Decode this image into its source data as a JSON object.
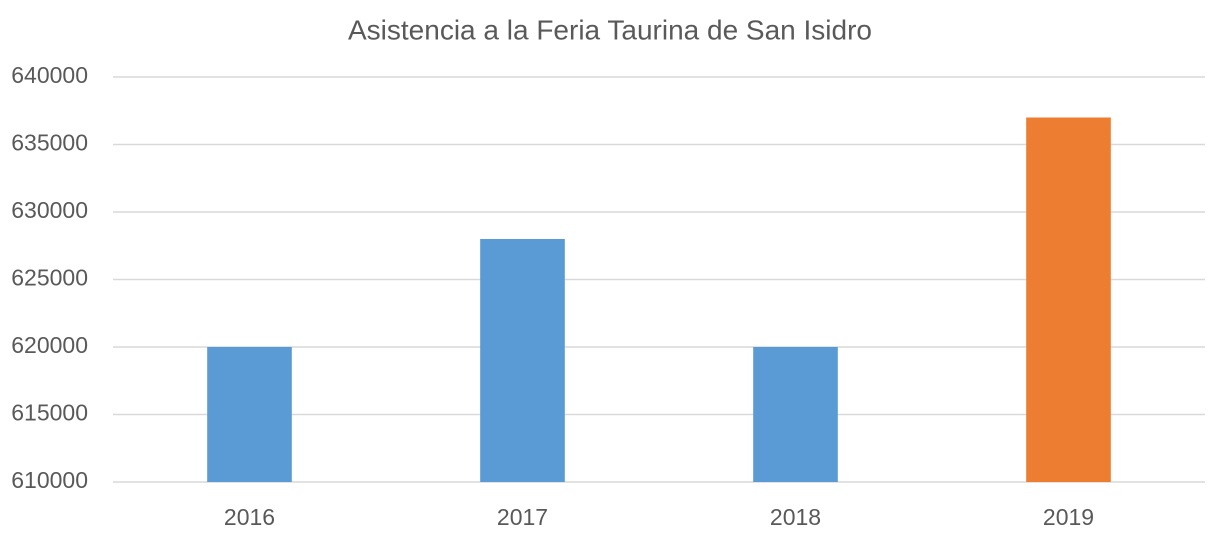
{
  "chart_data": {
    "type": "bar",
    "title": "Asistencia a la Feria Taurina de San Isidro",
    "categories": [
      "2016",
      "2017",
      "2018",
      "2019"
    ],
    "values": [
      620000,
      628000,
      620000,
      637000
    ],
    "colors": [
      "#5b9bd5",
      "#5b9bd5",
      "#5b9bd5",
      "#ed7d31"
    ],
    "ylim": [
      610000,
      640000
    ],
    "yticks": [
      610000,
      615000,
      620000,
      625000,
      630000,
      635000,
      640000
    ],
    "grid": true
  }
}
